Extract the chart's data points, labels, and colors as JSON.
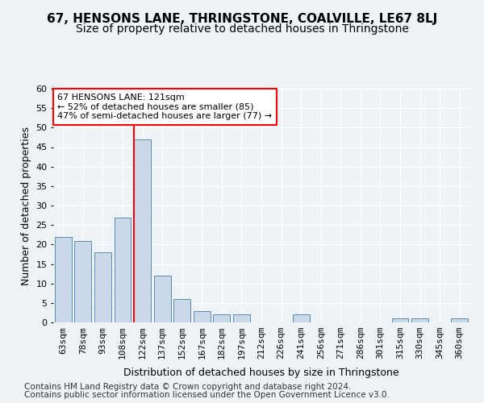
{
  "title1": "67, HENSONS LANE, THRINGSTONE, COALVILLE, LE67 8LJ",
  "title2": "Size of property relative to detached houses in Thringstone",
  "xlabel": "Distribution of detached houses by size in Thringstone",
  "ylabel": "Number of detached properties",
  "categories": [
    "63sqm",
    "78sqm",
    "93sqm",
    "108sqm",
    "122sqm",
    "137sqm",
    "152sqm",
    "167sqm",
    "182sqm",
    "197sqm",
    "212sqm",
    "226sqm",
    "241sqm",
    "256sqm",
    "271sqm",
    "286sqm",
    "301sqm",
    "315sqm",
    "330sqm",
    "345sqm",
    "360sqm"
  ],
  "values": [
    22,
    21,
    18,
    27,
    47,
    12,
    6,
    3,
    2,
    2,
    0,
    0,
    2,
    0,
    0,
    0,
    0,
    1,
    1,
    0,
    1
  ],
  "bar_color": "#c9d9e8",
  "bar_edge_color": "#5a8ab0",
  "vline_color": "red",
  "vline_x": 3.575,
  "annotation_text": "67 HENSONS LANE: 121sqm\n← 52% of detached houses are smaller (85)\n47% of semi-detached houses are larger (77) →",
  "annotation_box_color": "white",
  "annotation_box_edge": "red",
  "ylim": [
    0,
    60
  ],
  "yticks": [
    0,
    5,
    10,
    15,
    20,
    25,
    30,
    35,
    40,
    45,
    50,
    55,
    60
  ],
  "footer1": "Contains HM Land Registry data © Crown copyright and database right 2024.",
  "footer2": "Contains public sector information licensed under the Open Government Licence v3.0.",
  "bg_color": "#eef3f8",
  "plot_bg_color": "#eef3f8",
  "grid_color": "white",
  "title1_fontsize": 11,
  "title2_fontsize": 10,
  "xlabel_fontsize": 9,
  "ylabel_fontsize": 9,
  "tick_fontsize": 8,
  "footer_fontsize": 7.5
}
